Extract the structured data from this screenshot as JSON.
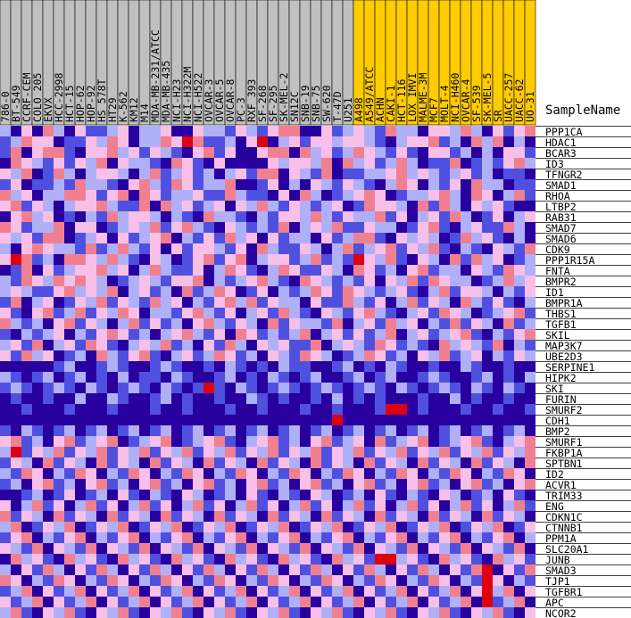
{
  "chart_data": {
    "type": "heatmap",
    "row_header": "SampleName",
    "columns": [
      {
        "name": "786-0",
        "group": "gray"
      },
      {
        "name": "BT-549",
        "group": "gray"
      },
      {
        "name": "CCRF-CEM",
        "group": "gray"
      },
      {
        "name": "COLO 205",
        "group": "gray"
      },
      {
        "name": "EKVX",
        "group": "gray"
      },
      {
        "name": "HCC-2998",
        "group": "gray"
      },
      {
        "name": "HCT-15",
        "group": "gray"
      },
      {
        "name": "HOP-62",
        "group": "gray"
      },
      {
        "name": "HOP-92",
        "group": "gray"
      },
      {
        "name": "HS 578T",
        "group": "gray"
      },
      {
        "name": "HT29",
        "group": "gray"
      },
      {
        "name": "K-562",
        "group": "gray"
      },
      {
        "name": "KM12",
        "group": "gray"
      },
      {
        "name": "M14",
        "group": "gray"
      },
      {
        "name": "MDA-MB-231/ATCC",
        "group": "gray"
      },
      {
        "name": "MDA-MB-435",
        "group": "gray"
      },
      {
        "name": "NCI-H23",
        "group": "gray"
      },
      {
        "name": "NCI-H322M",
        "group": "gray"
      },
      {
        "name": "NCI-H522",
        "group": "gray"
      },
      {
        "name": "OVCAR-3",
        "group": "gray"
      },
      {
        "name": "OVCAR-5",
        "group": "gray"
      },
      {
        "name": "OVCAR-8",
        "group": "gray"
      },
      {
        "name": "PC-3",
        "group": "gray"
      },
      {
        "name": "RXF 393",
        "group": "gray"
      },
      {
        "name": "SF-268",
        "group": "gray"
      },
      {
        "name": "SF-295",
        "group": "gray"
      },
      {
        "name": "SK-MEL-2",
        "group": "gray"
      },
      {
        "name": "SN12C",
        "group": "gray"
      },
      {
        "name": "SNB-19",
        "group": "gray"
      },
      {
        "name": "SNB-75",
        "group": "gray"
      },
      {
        "name": "SW-620",
        "group": "gray"
      },
      {
        "name": "T-47D",
        "group": "gray"
      },
      {
        "name": "U251",
        "group": "gray"
      },
      {
        "name": "A498",
        "group": "gold"
      },
      {
        "name": "A549/ATCC",
        "group": "gold"
      },
      {
        "name": "ACHN",
        "group": "gold"
      },
      {
        "name": "CAKI-1",
        "group": "gold"
      },
      {
        "name": "HCT-116",
        "group": "gold"
      },
      {
        "name": "LOX IMVI",
        "group": "gold"
      },
      {
        "name": "MALME-3M",
        "group": "gold"
      },
      {
        "name": "MCF7",
        "group": "gold"
      },
      {
        "name": "MOLT-4",
        "group": "gold"
      },
      {
        "name": "NCI-H460",
        "group": "gold"
      },
      {
        "name": "OVCAR-4",
        "group": "gold"
      },
      {
        "name": "SF-539",
        "group": "gold"
      },
      {
        "name": "SK-MEL-5",
        "group": "gold"
      },
      {
        "name": "SR",
        "group": "gold"
      },
      {
        "name": "UACC-257",
        "group": "gold"
      },
      {
        "name": "UACC-62",
        "group": "gold"
      },
      {
        "name": "UO-31",
        "group": "gold"
      }
    ],
    "rows": [
      "PPP1CA",
      "HDAC1",
      "BCAR3",
      "ID3",
      "TFNGR2",
      "SMAD1",
      "RHOA",
      "LTBP2",
      "RAB31",
      "SMAD7",
      "SMAD6",
      "CDK9",
      "PPP1R15A",
      "FNTA",
      "BMPR2",
      "ID1",
      "BMPR1A",
      "THBS1",
      "TGFB1",
      "SKIL",
      "MAP3K7",
      "UBE2D3",
      "SERPINE1",
      "HIPK2",
      "SKI",
      "FURIN",
      "SMURF2",
      "CDH1",
      "BMP2",
      "SMURF1",
      "FKBP1A",
      "SPTBN1",
      "ID2",
      "ACVR1",
      "TRIM33",
      "ENG",
      "CDKN1C",
      "CTNNB1",
      "PPM1A",
      "SLC20A1",
      "JUNB",
      "SMAD3",
      "TJP1",
      "TGFBR1",
      "APC",
      "NCOR2"
    ],
    "value_scale": [
      "deep blue (low)",
      "blue",
      "light blue",
      "light pink",
      "pink",
      "red (high)"
    ],
    "colors": {
      "gray_header": "#c0c0c0",
      "gold_header": "#ffcc00",
      "scale": [
        "#2800a0",
        "#5050e0",
        "#b0b0f8",
        "#f8c0e8",
        "#f08090",
        "#dd0010"
      ]
    },
    "values": [
      "2,0,3,0,4,2,0,3,1,1,2,3,0,2,2,3,0,0,3,2,2,1,3,2,1,3,4,4,0,0,3,1,2,3,2,1,4,2,2,0,3,3,2,4,2,0,3,1,3,4",
      "1,2,4,3,3,0,1,1,3,2,4,3,0,2,2,4,3,5,4,1,1,2,0,3,5,0,2,3,1,3,3,2,3,3,2,1,0,2,3,3,4,1,2,0,4,2,4,0,2,0",
      "1,4,0,3,4,4,1,0,3,3,4,2,3,1,3,2,1,0,3,4,1,3,0,0,3,4,4,0,4,2,3,1,2,4,3,2,1,3,1,0,3,3,1,2,0,2,0,3,3,1",
      "0,4,3,2,1,3,1,3,2,4,0,3,2,2,1,0,4,3,1,0,3,0,0,0,0,3,2,3,3,2,4,0,4,2,3,1,2,4,2,0,1,1,4,0,1,2,1,3,4,2",
      "3,2,4,0,1,4,2,0,2,3,3,2,0,2,4,1,2,3,1,2,0,2,3,1,4,4,0,3,2,1,4,0,1,1,2,2,3,4,2,3,2,1,2,3,1,2,0,1,1,0",
      "1,3,0,1,1,2,1,4,2,2,1,0,3,4,2,1,4,3,1,2,2,4,0,0,1,3,0,2,0,3,2,1,3,2,1,0,2,4,3,0,2,1,3,0,4,2,2,0,1,1",
      "4,2,3,0,2,2,4,4,3,1,3,4,0,4,3,1,2,2,3,1,1,4,2,1,1,0,3,0,4,2,0,1,2,3,4,3,0,1,2,2,3,4,2,0,4,3,0,2,4,1",
      "3,4,1,3,2,0,2,3,3,4,2,1,1,4,0,4,2,3,1,2,3,0,3,2,4,2,1,3,2,1,2,3,0,1,4,3,3,2,0,4,1,4,2,0,3,2,3,1,0,0",
      "0,3,4,2,3,0,1,0,2,1,4,2,3,3,2,0,2,1,0,4,2,2,1,0,2,1,3,3,2,4,2,1,3,2,2,4,1,3,0,2,3,1,4,2,0,1,3,0,2,3",
      "4,3,1,2,2,4,0,3,3,0,1,2,3,2,4,1,3,4,2,1,0,3,2,1,2,1,4,0,2,3,2,4,1,1,3,2,2,0,1,3,4,1,0,2,3,1,1,4,2,0",
      "3,2,3,1,4,4,0,1,2,3,0,3,1,2,3,4,0,2,1,3,1,4,2,3,0,3,1,2,2,0,3,1,2,4,4,1,0,3,2,3,2,0,1,4,2,3,1,0,2,0",
      "2,0,3,4,3,2,2,1,4,1,2,4,2,1,3,0,3,1,3,3,2,1,3,0,4,2,1,1,3,2,0,2,4,1,2,3,4,1,3,2,4,1,0,2,1,0,3,2,1,4",
      "3,5,4,1,2,0,4,4,3,2,4,2,1,0,3,2,0,1,3,4,1,3,4,0,2,3,3,1,2,4,1,2,1,5,3,2,4,1,0,3,2,0,4,1,4,2,3,0,1,2",
      "0,1,4,0,3,1,2,3,3,4,2,3,0,2,4,2,1,1,3,0,2,4,3,1,0,2,4,3,1,1,3,2,0,4,3,1,2,0,3,4,1,2,2,0,3,2,1,4,3,2",
      "2,1,4,3,2,4,3,4,3,2,0,1,2,3,2,1,3,3,4,0,2,1,2,3,4,2,1,0,4,3,2,1,2,1,3,0,3,2,4,1,4,3,2,2,0,1,2,4,2,3",
      "2,3,2,1,1,3,4,2,3,2,4,0,2,3,1,2,0,4,1,2,4,3,0,1,3,0,2,1,2,4,3,1,4,3,2,1,2,3,1,0,2,4,1,3,3,2,0,2,1,3",
      "1,4,0,2,3,0,1,3,2,4,1,3,2,1,4,2,3,0,2,1,3,4,2,4,1,3,2,2,0,3,1,1,4,2,1,3,0,2,4,1,3,2,0,4,2,1,3,1,0,2",
      "3,1,0,3,4,1,2,4,1,3,2,4,3,0,2,2,1,3,4,2,1,3,0,2,3,1,4,2,1,0,3,2,1,3,4,2,1,0,2,3,1,4,3,2,0,1,2,3,4,1",
      "4,2,1,2,0,3,4,1,3,2,0,2,4,1,3,1,2,0,3,4,2,1,3,2,0,4,1,3,2,2,1,4,0,2,3,1,4,2,3,0,2,1,4,1,3,2,0,4,1,2",
      "1,0,2,1,2,3,0,2,1,3,4,3,1,2,0,2,3,4,2,1,3,0,4,3,1,2,1,2,4,0,2,3,1,3,1,2,4,0,2,3,1,2,3,4,1,0,2,1,3,4",
      "2,3,1,4,0,2,3,1,4,3,1,0,2,3,2,4,1,2,0,3,1,4,2,0,3,2,3,1,1,4,0,2,3,2,1,4,3,1,2,1,0,4,2,3,2,1,4,0,2,1",
      "3,1,4,2,3,0,1,2,0,4,2,1,3,4,1,0,2,3,1,2,4,3,1,2,0,3,2,1,4,3,2,0,1,2,4,3,1,2,0,3,2,4,1,2,3,0,2,1,3,2",
      "0,0,0,0,0,1,2,0,0,1,2,1,0,0,1,2,1,0,0,1,0,2,1,0,1,0,2,1,1,0,0,1,2,0,1,0,2,1,0,0,1,0,0,2,1,0,0,1,0,0",
      "2,1,0,1,2,0,1,2,0,1,0,2,0,1,1,0,2,1,0,0,1,2,0,1,0,2,1,0,1,2,0,0,1,2,0,1,2,0,0,1,2,1,0,0,1,2,0,1,0,2",
      "1,2,1,0,1,2,1,0,2,1,0,1,2,1,0,2,1,0,1,5,1,0,2,1,0,1,2,1,0,1,2,1,0,1,2,1,0,2,1,0,1,2,1,0,2,1,0,2,1,0",
      "0,1,0,0,1,0,0,2,0,0,2,1,0,0,1,2,0,1,0,0,1,0,0,2,1,0,1,0,0,1,0,2,0,1,0,1,0,0,0,1,0,0,2,0,1,0,0,1,0,0",
      "0,0,1,0,0,0,1,0,0,0,1,0,0,0,1,0,0,1,0,0,0,1,0,0,1,0,0,0,1,0,0,1,0,0,0,1,5,5,0,1,0,0,0,1,0,0,1,0,0,1",
      "0,0,0,0,0,0,0,0,0,0,0,0,0,0,0,0,0,0,0,0,0,0,0,0,0,0,0,0,0,0,0,5,0,0,0,0,0,0,0,0,0,0,0,0,0,0,0,0,0,0",
      "1,0,2,1,0,1,2,0,1,2,0,1,2,0,1,2,0,1,2,0,1,2,0,1,2,0,1,2,0,1,2,0,1,2,0,1,2,0,1,2,0,1,2,0,1,2,0,1,2,0",
      "3,4,1,2,0,3,4,1,2,3,4,0,1,2,3,4,0,1,2,3,4,1,0,2,3,4,1,2,0,3,4,1,2,3,0,4,1,2,3,4,0,1,2,3,4,1,0,2,3,4",
      "2,5,1,3,2,4,1,3,2,4,1,3,2,4,1,3,2,4,1,3,2,4,1,3,2,4,1,3,2,4,1,3,2,4,1,3,2,4,1,3,2,4,1,3,2,4,1,3,2,4",
      "1,3,2,0,4,1,3,2,0,4,1,3,2,0,4,1,3,2,0,4,1,3,2,0,4,1,3,2,0,4,1,3,2,0,4,1,3,2,0,4,1,3,2,0,4,1,3,2,0,4",
      "2,1,4,3,0,2,1,4,3,0,2,1,4,3,0,2,1,4,3,0,2,1,4,3,0,2,1,4,3,0,2,1,4,3,0,2,1,4,3,0,2,1,4,3,0,2,1,4,3,0",
      "1,2,0,3,4,1,2,0,3,4,1,2,0,3,4,1,2,0,3,4,1,2,0,3,4,1,2,0,3,4,1,2,0,3,4,1,2,0,3,4,1,2,0,3,4,1,2,0,3,4",
      "0,0,1,2,0,1,3,0,1,2,0,3,1,0,2,1,0,3,2,0,1,2,0,3,1,0,2,1,0,3,2,0,1,2,0,3,1,0,2,1,0,3,2,0,1,2,0,3,1,0",
      "3,0,2,4,1,3,0,2,4,1,3,0,2,4,1,3,0,2,4,1,3,0,2,4,1,3,0,2,4,1,3,0,2,4,1,3,0,2,4,1,3,0,2,4,1,3,0,2,4,1",
      "4,1,3,2,0,4,1,3,2,0,4,1,3,2,0,4,1,3,2,0,4,1,3,2,0,4,1,3,2,0,4,1,3,2,0,4,1,3,2,0,4,1,3,2,0,4,1,3,2,0",
      "2,4,0,1,3,2,4,0,1,3,2,4,0,1,3,2,4,0,1,3,2,4,0,1,3,2,4,0,1,3,2,4,0,1,3,2,4,0,1,3,2,4,0,1,3,2,4,0,1,3",
      "1,3,4,0,2,1,3,4,0,2,1,3,4,0,2,1,3,4,0,2,1,3,4,0,2,1,3,4,0,2,1,3,4,0,2,1,3,4,0,2,1,3,4,0,2,1,3,4,0,2",
      "3,2,1,4,0,3,2,1,4,0,3,2,1,4,0,3,2,1,4,0,3,2,1,4,0,3,2,1,4,0,3,2,1,4,0,3,2,1,4,0,3,2,1,4,0,3,2,1,4,0",
      "0,4,2,3,1,0,4,2,3,1,0,4,2,3,1,0,4,2,3,1,0,4,2,3,1,0,4,2,3,1,0,4,2,3,1,5,5,2,3,1,0,4,2,3,1,0,4,2,3,1",
      "2,0,3,1,4,2,0,3,1,4,2,0,3,1,4,2,0,3,1,4,2,0,3,1,4,2,0,3,1,4,2,0,3,1,4,2,0,3,1,4,2,0,3,1,4,5,0,3,1,4",
      "4,3,0,2,1,4,3,0,2,1,4,3,0,2,1,4,3,0,2,1,4,3,0,2,1,4,3,0,2,1,4,3,0,2,1,4,3,0,2,1,4,3,0,2,1,5,3,0,2,1",
      "1,2,4,0,3,1,2,4,0,3,1,2,4,0,3,1,2,4,0,3,1,2,4,0,3,1,2,4,0,3,1,2,4,0,3,1,2,4,0,3,1,2,4,0,3,5,2,4,0,3",
      "3,1,2,4,0,3,1,2,4,0,3,1,2,4,0,3,1,2,4,0,3,1,2,4,0,3,1,2,4,0,3,1,2,4,0,3,1,2,4,0,3,1,2,4,0,5,1,2,4,0",
      "2,4,1,0,3,2,4,1,0,3,2,4,1,0,3,2,4,1,0,3,2,4,1,0,3,2,4,1,0,3,2,4,1,0,3,2,4,1,0,3,2,4,1,0,3,2,4,1,0,3"
    ]
  }
}
